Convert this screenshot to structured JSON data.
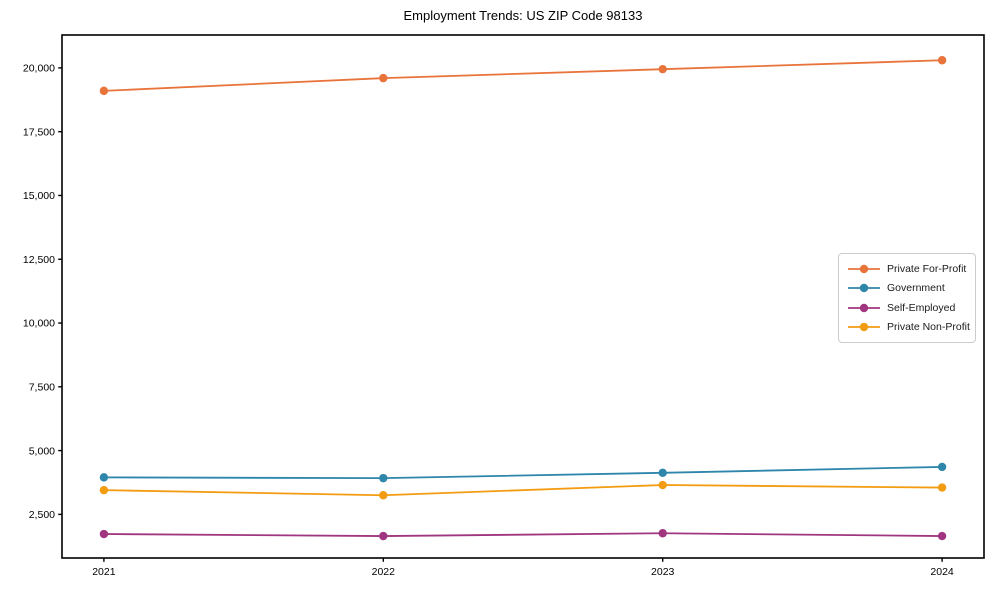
{
  "page": {
    "background_color": "#ffffff"
  },
  "chart_data": {
    "type": "line",
    "title": "Employment Trends: US ZIP Code 98133",
    "x": [
      2021,
      2022,
      2023,
      2024
    ],
    "x_tick_labels": [
      "2021",
      "2022",
      "2023",
      "2024"
    ],
    "series": [
      {
        "name": "Private For-Profit",
        "color": "#E8743B",
        "values": [
          19100,
          19600,
          19950,
          20300
        ]
      },
      {
        "name": "Government",
        "color": "#2E86AB",
        "values": [
          3950,
          3920,
          4130,
          4360
        ]
      },
      {
        "name": "Self-Employed",
        "color": "#A0367F",
        "values": [
          1730,
          1650,
          1760,
          1650
        ]
      },
      {
        "name": "Private Non-Profit",
        "color": "#F39C12",
        "values": [
          3450,
          3250,
          3650,
          3550
        ]
      }
    ],
    "y_ticks": [
      2500,
      5000,
      7500,
      10000,
      12500,
      15000,
      17500,
      20000
    ],
    "y_tick_labels": [
      "2,500",
      "5,000",
      "7,500",
      "10,000",
      "12,500",
      "15,000",
      "17,500",
      "20,000"
    ],
    "xlim": [
      2020.85,
      2024.15
    ],
    "ylim": [
      790,
      21290
    ],
    "grid": false,
    "legend_position": "center right",
    "marker": "circle",
    "axis_color": "#000000"
  }
}
